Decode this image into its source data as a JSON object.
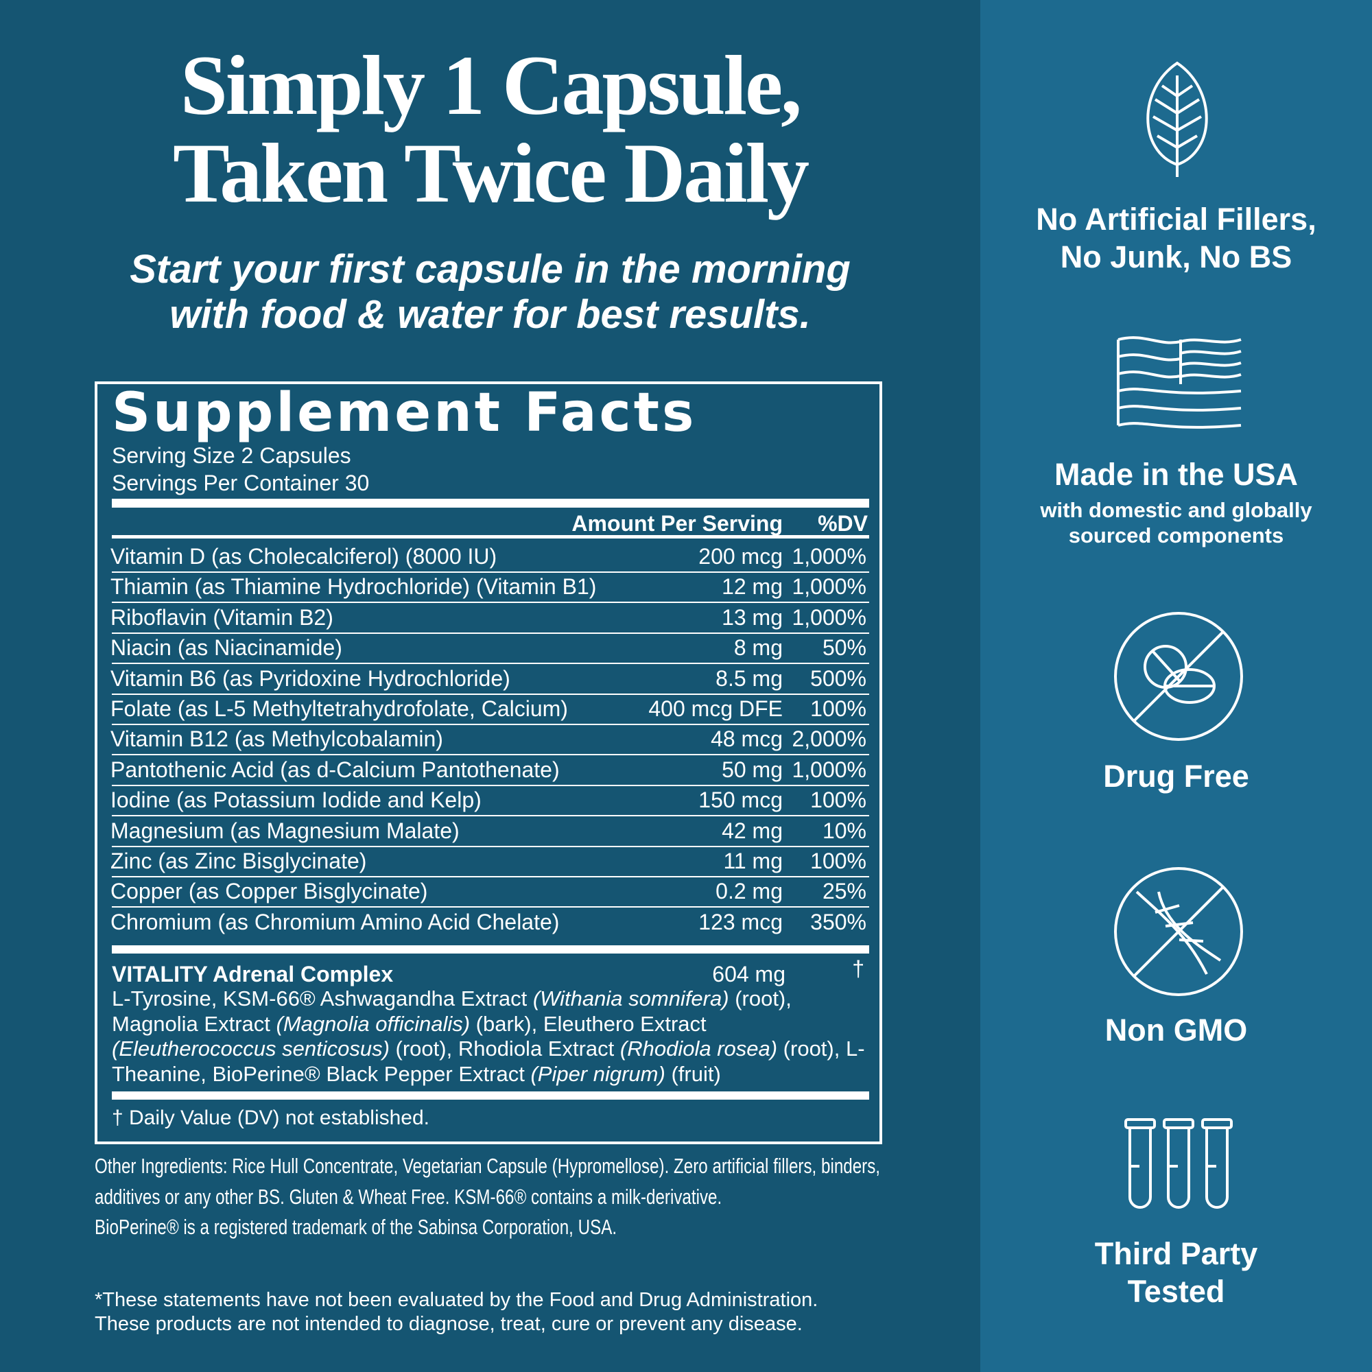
{
  "header": {
    "title_lines": [
      "Simply 1 Capsule,",
      "Taken Twice Daily"
    ],
    "subtitle_lines": [
      "Start your first capsule in the morning",
      "with food & water for best results."
    ]
  },
  "facts": {
    "title": "Supplement Facts",
    "serving_size": "Serving Size 2 Capsules",
    "servings_per_container": "Servings Per Container 30",
    "col_amount": "Amount Per Serving",
    "col_dv": "%DV",
    "rows": [
      [
        "Vitamin D (as Cholecalciferol) (8000 IU)",
        "200 mcg",
        "1,000%"
      ],
      [
        "Thiamin (as Thiamine Hydrochloride) (Vitamin B1)",
        "12 mg",
        "1,000%"
      ],
      [
        "Riboflavin (Vitamin B2)",
        "13 mg",
        "1,000%"
      ],
      [
        "Niacin (as Niacinamide)",
        "8 mg",
        "50%"
      ],
      [
        "Vitamin B6 (as Pyridoxine Hydrochloride)",
        "8.5 mg",
        "500%"
      ],
      [
        "Folate (as L-5 Methyltetrahydrofolate, Calcium)",
        "400 mcg DFE",
        "100%"
      ],
      [
        "Vitamin B12 (as Methylcobalamin)",
        "48 mcg",
        "2,000%"
      ],
      [
        "Pantothenic Acid (as d-Calcium Pantothenate)",
        "50 mg",
        "1,000%"
      ],
      [
        "Iodine (as Potassium Iodide and Kelp)",
        "150 mcg",
        "100%"
      ],
      [
        "Magnesium (as Magnesium Malate)",
        "42 mg",
        "10%"
      ],
      [
        "Zinc (as Zinc Bisglycinate)",
        "11 mg",
        "100%"
      ],
      [
        "Copper (as Copper Bisglycinate)",
        "0.2 mg",
        "25%"
      ],
      [
        "Chromium (as Chromium Amino Acid Chelate)",
        "123 mcg",
        "350%"
      ]
    ],
    "complex_name": "VITALITY Adrenal Complex",
    "complex_amount": "604 mg",
    "complex_dv": "†",
    "complex_ingredients": [
      {
        "text": "L-Tyrosine, KSM-66® Ashwagandha Extract ",
        "italic": false
      },
      {
        "text": "(Withania somnifera)",
        "italic": true
      },
      {
        "text": " (root), Magnolia Extract ",
        "italic": false
      },
      {
        "text": "(Magnolia officinalis)",
        "italic": true
      },
      {
        "text": " (bark), Eleuthero Extract ",
        "italic": false
      },
      {
        "text": "(Eleutherococcus senticosus)",
        "italic": true
      },
      {
        "text": " (root), Rhodiola Extract ",
        "italic": false
      },
      {
        "text": "(Rhodiola rosea)",
        "italic": true
      },
      {
        "text": " (root), L-Theanine, BioPerine® Black Pepper Extract ",
        "italic": false
      },
      {
        "text": "(Piper nigrum)",
        "italic": true
      },
      {
        "text": " (fruit)",
        "italic": false
      }
    ],
    "footnote": "† Daily Value (DV) not established."
  },
  "other_ingredients_lines": [
    "Other Ingredients: Rice Hull Concentrate, Vegetarian Capsule (Hypromellose). Zero artificial fillers, binders,",
    "additives or any other BS. Gluten & Wheat Free. KSM-66® contains a milk-derivative.",
    "BioPerine® is a registered trademark of the Sabinsa Corporation, USA."
  ],
  "disclaimer_lines": [
    "*These statements have not been evaluated by the Food and Drug Administration.",
    "These products are not intended to diagnose, treat, cure or prevent any disease."
  ],
  "features": [
    {
      "lines": [
        "No Artificial Fillers,",
        "No Junk, No BS"
      ]
    },
    {
      "lines": [
        "Made in the USA"
      ],
      "sub_lines": [
        "with domestic and globally",
        "sourced components"
      ]
    },
    {
      "lines": [
        "Drug Free"
      ]
    },
    {
      "lines": [
        "Non GMO"
      ]
    },
    {
      "lines": [
        "Third Party",
        "Tested"
      ]
    }
  ]
}
